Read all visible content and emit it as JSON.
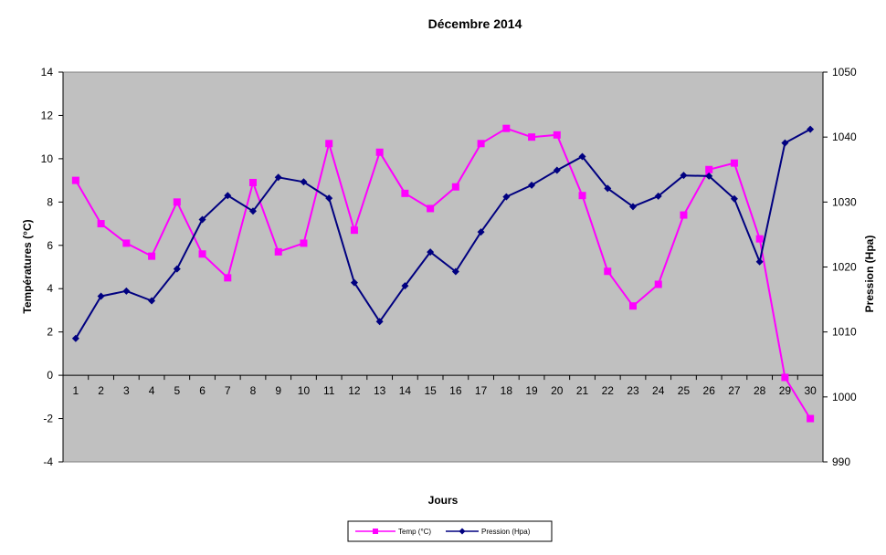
{
  "chart_data": {
    "type": "line",
    "title": "Décembre 2014",
    "xlabel": "Jours",
    "ylabel_left": "Températures (°C)",
    "ylabel_right": "Pression (Hpa)",
    "categories": [
      "1",
      "2",
      "3",
      "4",
      "5",
      "6",
      "7",
      "8",
      "9",
      "10",
      "11",
      "12",
      "13",
      "14",
      "15",
      "16",
      "17",
      "18",
      "19",
      "20",
      "21",
      "22",
      "23",
      "24",
      "25",
      "26",
      "27",
      "28",
      "29",
      "30"
    ],
    "ylim_left": [
      -4,
      14
    ],
    "yticks_left": [
      "-4",
      "-2",
      "0",
      "2",
      "4",
      "6",
      "8",
      "10",
      "12",
      "14"
    ],
    "ylim_right": [
      990,
      1050
    ],
    "yticks_right": [
      "990",
      "1000",
      "1010",
      "1020",
      "1030",
      "1040",
      "1050"
    ],
    "grid": false,
    "plot_background": "#c0c0c0",
    "legend_position": "bottom",
    "series": [
      {
        "name": "Temp (°C)",
        "axis": "left",
        "color": "#ff00ff",
        "marker": "square",
        "values": [
          9.0,
          7.0,
          6.1,
          5.5,
          8.0,
          5.6,
          4.5,
          8.9,
          5.7,
          6.1,
          10.7,
          6.7,
          10.3,
          8.4,
          7.7,
          8.7,
          10.7,
          11.4,
          11.0,
          11.1,
          8.3,
          4.8,
          3.2,
          4.2,
          7.4,
          9.5,
          9.8,
          6.3,
          -0.1,
          -2.0
        ]
      },
      {
        "name": "Pression (Hpa)",
        "axis": "right",
        "color": "#000080",
        "marker": "diamond",
        "values": [
          1009.0,
          1015.5,
          1016.3,
          1014.8,
          1019.7,
          1027.3,
          1031.0,
          1028.6,
          1033.8,
          1033.1,
          1030.6,
          1017.6,
          1011.6,
          1017.1,
          1022.3,
          1019.3,
          1025.4,
          1030.8,
          1032.6,
          1034.9,
          1037.0,
          1032.1,
          1029.3,
          1030.9,
          1034.1,
          1034.0,
          1030.5,
          1020.8,
          1039.1,
          1041.2
        ]
      }
    ]
  }
}
